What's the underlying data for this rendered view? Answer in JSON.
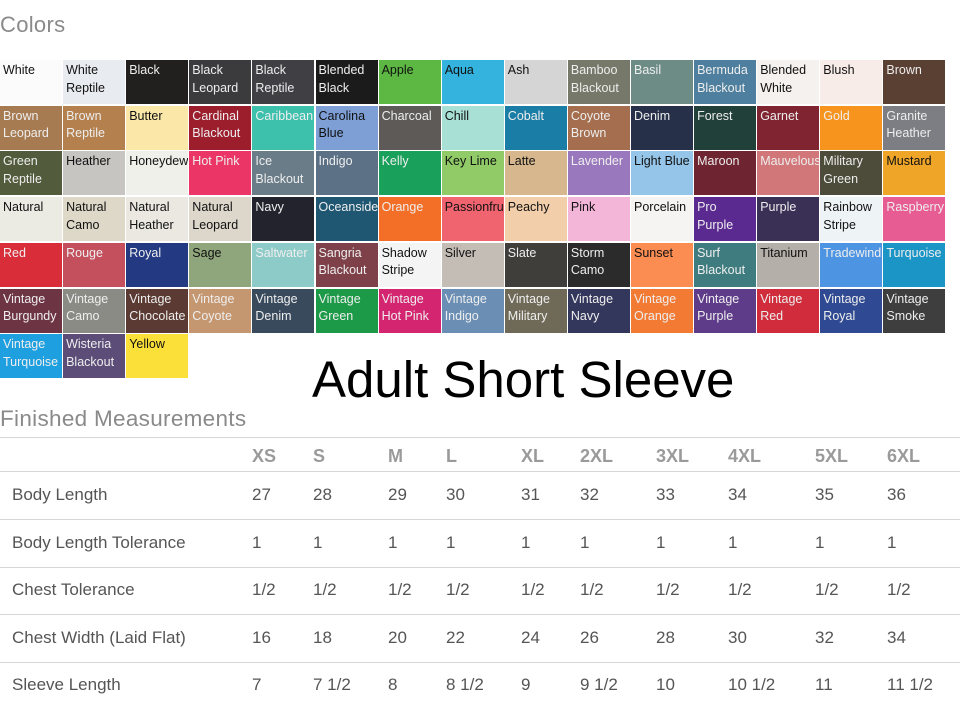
{
  "colors_title": "Colors",
  "banner": "Adult Short Sleeve",
  "measurements_title": "Finished Measurements",
  "swatches": [
    [
      {
        "n": "White",
        "c": "#fbfbfb",
        "f": "#111"
      },
      {
        "n": "White\nReptile",
        "c": "#e8ebf0",
        "f": "#111"
      },
      {
        "n": "Black",
        "c": "#221f1f",
        "f": "#eee"
      },
      {
        "n": "Black\nLeopard",
        "c": "#3b3b3d",
        "f": "#eee"
      },
      {
        "n": "Black\nReptile",
        "c": "#3f3f44",
        "f": "#eee"
      },
      {
        "n": "Blended\nBlack",
        "c": "#1b1b1b",
        "f": "#eee"
      },
      {
        "n": "Apple",
        "c": "#5cb842",
        "f": "#111"
      },
      {
        "n": "Aqua",
        "c": "#33b3dd",
        "f": "#111"
      },
      {
        "n": "Ash",
        "c": "#d5d5d5",
        "f": "#111"
      },
      {
        "n": "Bamboo\nBlackout",
        "c": "#76796a",
        "f": "#eee"
      },
      {
        "n": "Basil",
        "c": "#6e8c86",
        "f": "#eee"
      },
      {
        "n": "Bermuda\nBlackout",
        "c": "#4e7f9e",
        "f": "#eee"
      },
      {
        "n": "Blended\nWhite",
        "c": "#f5f1ee",
        "f": "#111"
      },
      {
        "n": "Blush",
        "c": "#f8ece8",
        "f": "#111"
      },
      {
        "n": "Brown",
        "c": "#5a3f33",
        "f": "#eee"
      }
    ],
    [
      {
        "n": "Brown\nLeopard",
        "c": "#a77b52",
        "f": "#eee"
      },
      {
        "n": "Brown\nReptile",
        "c": "#b3804e",
        "f": "#eee"
      },
      {
        "n": "Butter",
        "c": "#fbe7a8",
        "f": "#111"
      },
      {
        "n": "Cardinal\nBlackout",
        "c": "#9c1e2d",
        "f": "#eee"
      },
      {
        "n": "Caribbean",
        "c": "#3dc0ac",
        "f": "#eee"
      },
      {
        "n": "Carolina\nBlue",
        "c": "#7d9fd6",
        "f": "#111"
      },
      {
        "n": "Charcoal",
        "c": "#5d5a58",
        "f": "#eee"
      },
      {
        "n": "Chill",
        "c": "#a9e0d6",
        "f": "#111"
      },
      {
        "n": "Cobalt",
        "c": "#1a7da5",
        "f": "#eee"
      },
      {
        "n": "Coyote\nBrown",
        "c": "#a56e4e",
        "f": "#eee"
      },
      {
        "n": "Denim",
        "c": "#263049",
        "f": "#eee"
      },
      {
        "n": "Forest",
        "c": "#22403a",
        "f": "#eee"
      },
      {
        "n": "Garnet",
        "c": "#7f2430",
        "f": "#eee"
      },
      {
        "n": "Gold",
        "c": "#f7941d",
        "f": "#eee"
      },
      {
        "n": "Granite\nHeather",
        "c": "#7d7e83",
        "f": "#eee"
      }
    ],
    [
      {
        "n": "Green\nReptile",
        "c": "#525b3c",
        "f": "#eee"
      },
      {
        "n": "Heather",
        "c": "#c7c5c2",
        "f": "#111"
      },
      {
        "n": "Honeydew",
        "c": "#f0f0ea",
        "f": "#111"
      },
      {
        "n": "Hot Pink",
        "c": "#ea3566",
        "f": "#eee"
      },
      {
        "n": "Ice\nBlackout",
        "c": "#6a7c88",
        "f": "#eee"
      },
      {
        "n": "Indigo",
        "c": "#5c7186",
        "f": "#eee"
      },
      {
        "n": "Kelly",
        "c": "#19a05a",
        "f": "#eee"
      },
      {
        "n": "Key Lime",
        "c": "#90cb68",
        "f": "#111"
      },
      {
        "n": "Latte",
        "c": "#d7b78e",
        "f": "#111"
      },
      {
        "n": "Lavender",
        "c": "#9a78bd",
        "f": "#eee"
      },
      {
        "n": "Light Blue",
        "c": "#95c6ea",
        "f": "#111"
      },
      {
        "n": "Maroon",
        "c": "#6f2531",
        "f": "#eee"
      },
      {
        "n": "Mauvelous",
        "c": "#d27779",
        "f": "#eee"
      },
      {
        "n": "Military\nGreen",
        "c": "#4d4b39",
        "f": "#eee"
      },
      {
        "n": "Mustard",
        "c": "#eea528",
        "f": "#111"
      }
    ],
    [
      {
        "n": "Natural",
        "c": "#ecebe3",
        "f": "#111"
      },
      {
        "n": "Natural\nCamo",
        "c": "#ddd8c7",
        "f": "#111"
      },
      {
        "n": "Natural\nHeather",
        "c": "#ebe8e2",
        "f": "#111"
      },
      {
        "n": "Natural\nLeopard",
        "c": "#dcd6cb",
        "f": "#111"
      },
      {
        "n": "Navy",
        "c": "#23232d",
        "f": "#eee"
      },
      {
        "n": "Oceanside",
        "c": "#1f5672",
        "f": "#eee"
      },
      {
        "n": "Orange",
        "c": "#f36f27",
        "f": "#eee"
      },
      {
        "n": "Passionfru",
        "c": "#f06470",
        "f": "#111"
      },
      {
        "n": "Peachy",
        "c": "#f2ceab",
        "f": "#111"
      },
      {
        "n": "Pink",
        "c": "#f4b6d8",
        "f": "#111"
      },
      {
        "n": "Porcelain",
        "c": "#f5f4f2",
        "f": "#111"
      },
      {
        "n": "Pro\nPurple",
        "c": "#5b2a91",
        "f": "#eee"
      },
      {
        "n": "Purple",
        "c": "#3a2f55",
        "f": "#eee"
      },
      {
        "n": "Rainbow\nStripe",
        "c": "#eef3f5",
        "f": "#111"
      },
      {
        "n": "Raspberry",
        "c": "#e75c92",
        "f": "#eee"
      }
    ],
    [
      {
        "n": "Red",
        "c": "#d92e3a",
        "f": "#eee"
      },
      {
        "n": "Rouge",
        "c": "#c4505e",
        "f": "#eee"
      },
      {
        "n": "Royal",
        "c": "#233a82",
        "f": "#eee"
      },
      {
        "n": "Sage",
        "c": "#8fa57b",
        "f": "#111"
      },
      {
        "n": "Saltwater",
        "c": "#8dcbc8",
        "f": "#eee"
      },
      {
        "n": "Sangria\nBlackout",
        "c": "#7f4149",
        "f": "#eee"
      },
      {
        "n": "Shadow\nStripe",
        "c": "#f4f4f4",
        "f": "#111"
      },
      {
        "n": "Silver",
        "c": "#c4bdb6",
        "f": "#111"
      },
      {
        "n": "Slate",
        "c": "#403e3b",
        "f": "#eee"
      },
      {
        "n": "Storm\nCamo",
        "c": "#2b2b2b",
        "f": "#eee"
      },
      {
        "n": "Sunset",
        "c": "#fb8c52",
        "f": "#111"
      },
      {
        "n": "Surf\nBlackout",
        "c": "#3e7c7f",
        "f": "#eee"
      },
      {
        "n": "Titanium",
        "c": "#b4afa8",
        "f": "#111"
      },
      {
        "n": "Tradewind",
        "c": "#4d94e3",
        "f": "#eee"
      },
      {
        "n": "Turquoise",
        "c": "#1b95c6",
        "f": "#eee"
      }
    ],
    [
      {
        "n": "Vintage\nBurgundy",
        "c": "#6d3444",
        "f": "#eee"
      },
      {
        "n": "Vintage\nCamo",
        "c": "#8b8b86",
        "f": "#eee"
      },
      {
        "n": "Vintage\nChocolate",
        "c": "#5a3a32",
        "f": "#eee"
      },
      {
        "n": "Vintage\nCoyote",
        "c": "#c59770",
        "f": "#eee"
      },
      {
        "n": "Vintage\nDenim",
        "c": "#394a5d",
        "f": "#eee"
      },
      {
        "n": "Vintage\nGreen",
        "c": "#1c9a48",
        "f": "#eee"
      },
      {
        "n": "Vintage\nHot Pink",
        "c": "#d42670",
        "f": "#eee"
      },
      {
        "n": "Vintage\nIndigo",
        "c": "#6b8fb4",
        "f": "#eee"
      },
      {
        "n": "Vintage\nMilitary",
        "c": "#6f6a58",
        "f": "#eee"
      },
      {
        "n": "Vintage\nNavy",
        "c": "#34375c",
        "f": "#eee"
      },
      {
        "n": "Vintage\nOrange",
        "c": "#f27a33",
        "f": "#eee"
      },
      {
        "n": "Vintage\nPurple",
        "c": "#5e3c8a",
        "f": "#eee"
      },
      {
        "n": "Vintage\nRed",
        "c": "#d02c3b",
        "f": "#eee"
      },
      {
        "n": "Vintage\nRoyal",
        "c": "#2f4a92",
        "f": "#eee"
      },
      {
        "n": "Vintage\nSmoke",
        "c": "#3f3e3e",
        "f": "#eee"
      }
    ],
    [
      {
        "n": "Vintage\nTurquoise",
        "c": "#1d9fe0",
        "f": "#eee"
      },
      {
        "n": "Wisteria\nBlackout",
        "c": "#5b4d78",
        "f": "#eee"
      },
      {
        "n": "Yellow",
        "c": "#fbe03a",
        "f": "#111"
      }
    ]
  ],
  "table": {
    "sizes": [
      "XS",
      "S",
      "M",
      "L",
      "XL",
      "2XL",
      "3XL",
      "4XL",
      "5XL",
      "6XL"
    ],
    "rows": [
      {
        "label": "Body Length",
        "values": [
          "27",
          "28",
          "29",
          "30",
          "31",
          "32",
          "33",
          "34",
          "35",
          "36"
        ]
      },
      {
        "label": "Body Length Tolerance",
        "values": [
          "1",
          "1",
          "1",
          "1",
          "1",
          "1",
          "1",
          "1",
          "1",
          "1"
        ]
      },
      {
        "label": "Chest Tolerance",
        "values": [
          "1/2",
          "1/2",
          "1/2",
          "1/2",
          "1/2",
          "1/2",
          "1/2",
          "1/2",
          "1/2",
          "1/2"
        ]
      },
      {
        "label": "Chest Width (Laid Flat)",
        "values": [
          "16",
          "18",
          "20",
          "22",
          "24",
          "26",
          "28",
          "30",
          "32",
          "34"
        ]
      },
      {
        "label": "Sleeve Length",
        "values": [
          "7",
          "7 1/2",
          "8",
          "8 1/2",
          "9",
          "9 1/2",
          "10",
          "10 1/2",
          "11",
          "11 1/2"
        ]
      }
    ]
  }
}
